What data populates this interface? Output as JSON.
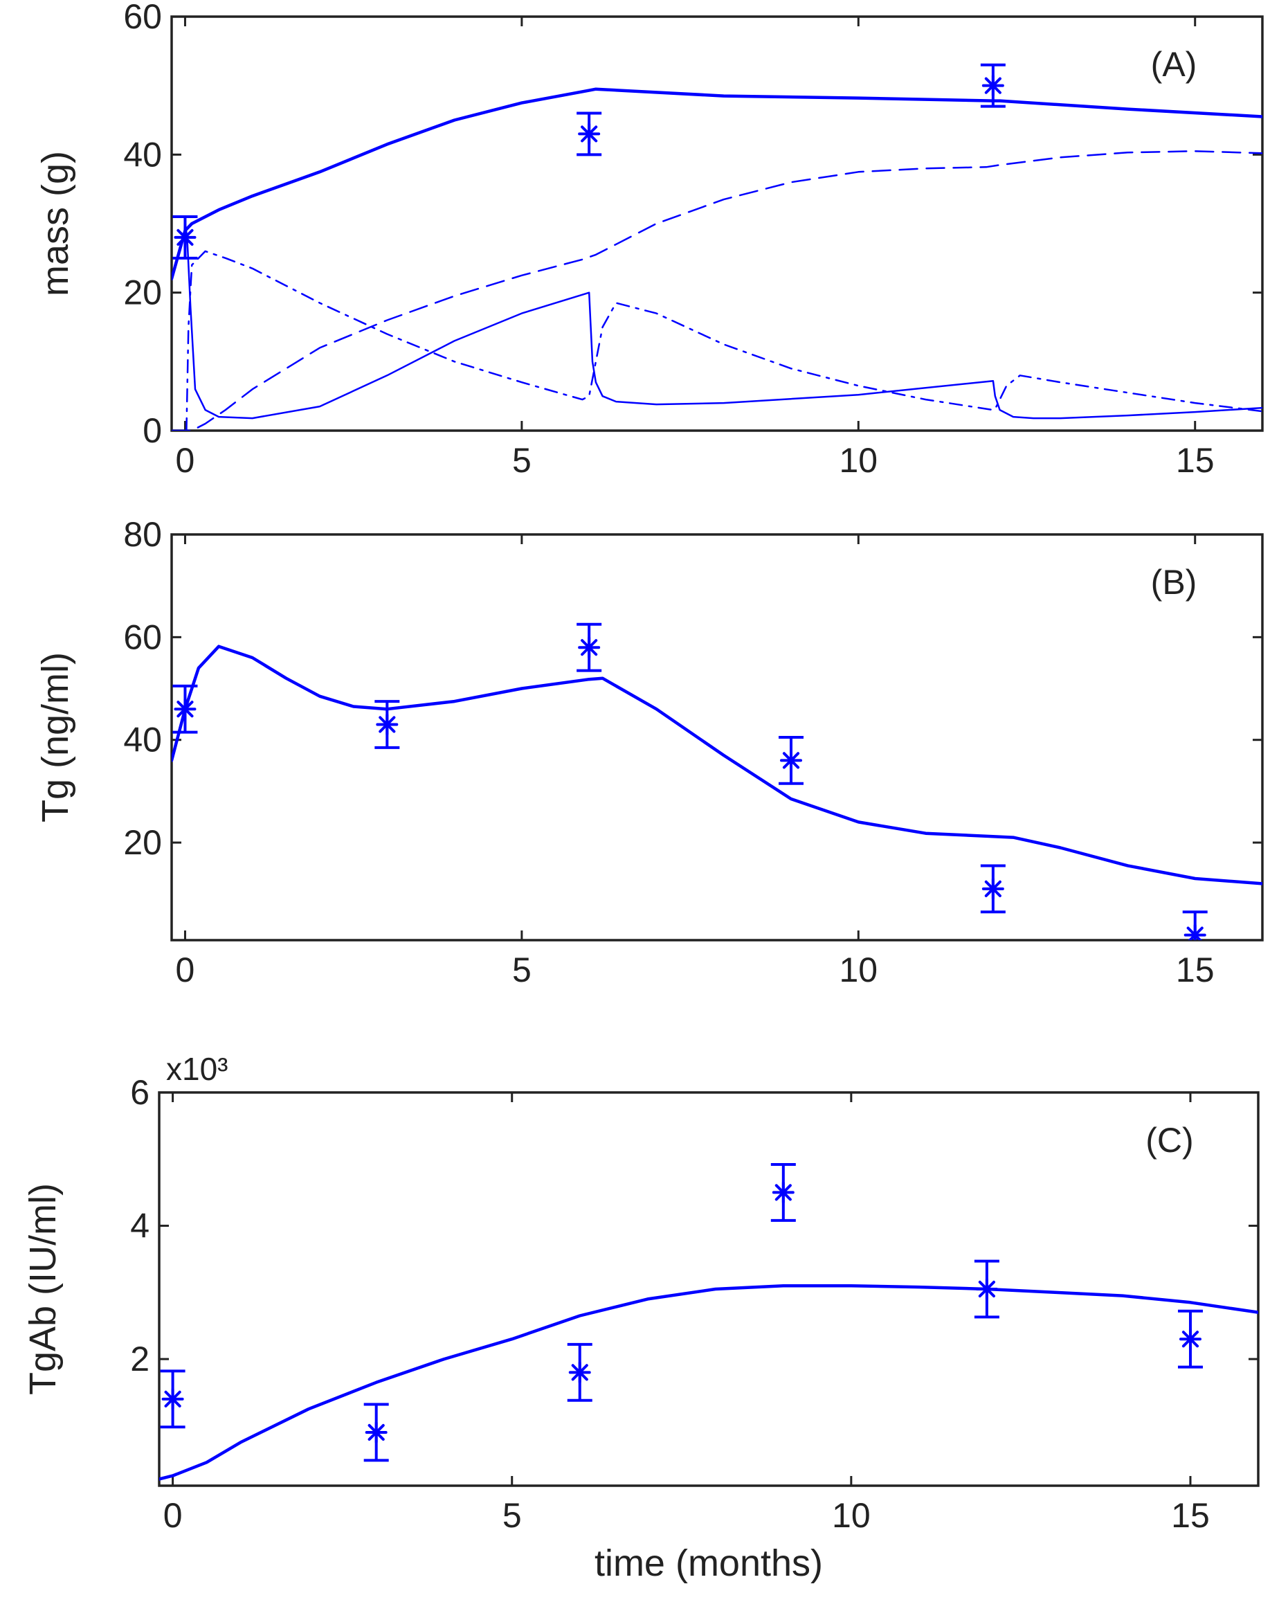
{
  "figure": {
    "line_color": "#0000ff",
    "axis_color": "#222222",
    "xlabel": "time (months)"
  },
  "chart_data": [
    {
      "type": "line",
      "panel_label": "(A)",
      "ylabel": "mass (g)",
      "xlabel": "",
      "xlim": [
        -0.2,
        16
      ],
      "ylim": [
        0,
        60
      ],
      "xticks": [
        0,
        5,
        10,
        15
      ],
      "yticks": [
        0,
        20,
        40,
        60
      ],
      "grid": false,
      "series": [
        {
          "style": "solid-thick",
          "x": [
            -0.2,
            0,
            0.1,
            0.5,
            1,
            2,
            3,
            4,
            5,
            6,
            6.1,
            8,
            10,
            12,
            12.1,
            14,
            16
          ],
          "y": [
            22,
            29,
            30,
            32,
            34,
            37.5,
            41.5,
            45,
            47.5,
            49.3,
            49.5,
            48.5,
            48.2,
            47.8,
            47.8,
            46.6,
            45.5
          ]
        },
        {
          "style": "dashed",
          "x": [
            -0.2,
            0,
            0.1,
            0.3,
            0.6,
            1,
            2,
            3,
            4,
            5,
            5.9,
            6.1,
            7,
            8,
            9,
            10,
            11,
            11.9,
            12.1,
            13,
            14,
            15,
            16
          ],
          "y": [
            0,
            0,
            0,
            1,
            3,
            6,
            12,
            16,
            19.5,
            22.5,
            24.8,
            25.5,
            30,
            33.5,
            36,
            37.5,
            38,
            38.2,
            38.5,
            39.6,
            40.3,
            40.5,
            40.2
          ]
        },
        {
          "style": "dashdot",
          "x": [
            0.02,
            0.05,
            0.1,
            0.3,
            0.6,
            1,
            2,
            3,
            4,
            5,
            5.9,
            6.0,
            6.2,
            6.4,
            7,
            8,
            9,
            10,
            11,
            12,
            12.05,
            12.2,
            12.4,
            13,
            14,
            15,
            16
          ],
          "y": [
            0,
            15,
            24,
            26,
            25,
            23.5,
            18.5,
            14,
            10,
            7,
            4.5,
            5,
            15,
            18.5,
            17,
            12.5,
            9,
            6.5,
            4.5,
            3,
            3.5,
            6.5,
            8,
            7,
            5.5,
            4,
            2.8
          ]
        },
        {
          "style": "solid-thin",
          "x": [
            0,
            0.03,
            0.08,
            0.15,
            0.3,
            0.5,
            1,
            2,
            3,
            4,
            5,
            6,
            6.02,
            6.05,
            6.1,
            6.2,
            6.4,
            6.7,
            7,
            8,
            10,
            12,
            12.03,
            12.1,
            12.3,
            12.6,
            13,
            14,
            15,
            16
          ],
          "y": [
            30,
            28,
            18,
            6,
            3,
            2,
            1.8,
            3.5,
            8,
            13,
            17,
            20,
            16,
            10,
            7,
            5,
            4.2,
            4,
            3.8,
            4,
            5.2,
            7.2,
            5,
            3,
            2,
            1.8,
            1.8,
            2.2,
            2.7,
            3.3
          ]
        }
      ],
      "markers": {
        "x": [
          0,
          6,
          12
        ],
        "y": [
          28,
          43,
          50
        ],
        "err": [
          3,
          3,
          3
        ]
      }
    },
    {
      "type": "line",
      "panel_label": "(B)",
      "ylabel": "Tg (ng/ml)",
      "xlabel": "",
      "xlim": [
        -0.2,
        16
      ],
      "ylim": [
        1,
        80
      ],
      "xticks": [
        0,
        5,
        10,
        15
      ],
      "yticks": [
        20,
        40,
        60,
        80
      ],
      "grid": false,
      "series": [
        {
          "style": "solid-thick",
          "x": [
            -0.2,
            0,
            0.2,
            0.5,
            1,
            1.5,
            2,
            2.5,
            3,
            4,
            5,
            6,
            6.2,
            7,
            8,
            9,
            10,
            11,
            12,
            12.3,
            13,
            14,
            15,
            16
          ],
          "y": [
            36,
            46,
            54,
            58.2,
            56,
            52,
            48.5,
            46.5,
            46,
            47.5,
            50,
            51.8,
            52,
            46,
            37,
            28.5,
            24,
            21.8,
            21.2,
            21,
            19,
            15.5,
            13,
            12
          ]
        }
      ],
      "markers": {
        "x": [
          0,
          3,
          6,
          9,
          12,
          15
        ],
        "y": [
          46,
          43,
          58,
          36,
          11,
          2
        ],
        "err": [
          4.5,
          4.5,
          4.5,
          4.5,
          4.5,
          4.5
        ]
      }
    },
    {
      "type": "line",
      "panel_label": "(C)",
      "ylabel": "TgAb (IU/ml)",
      "xlabel": "time (months)",
      "y_multiplier": "x10³",
      "xlim": [
        -0.2,
        16
      ],
      "ylim": [
        0.1,
        6
      ],
      "xticks": [
        0,
        5,
        10,
        15
      ],
      "yticks": [
        2,
        4,
        6
      ],
      "grid": false,
      "series": [
        {
          "style": "solid-thick",
          "x": [
            -0.2,
            0,
            0.5,
            1,
            2,
            3,
            4,
            5,
            6,
            7,
            8,
            9,
            10,
            11,
            12,
            13,
            14,
            15,
            16
          ],
          "y": [
            0.2,
            0.25,
            0.45,
            0.75,
            1.25,
            1.65,
            2.0,
            2.3,
            2.65,
            2.9,
            3.05,
            3.1,
            3.1,
            3.08,
            3.05,
            3.0,
            2.95,
            2.85,
            2.7
          ]
        }
      ],
      "markers": {
        "x": [
          0,
          3,
          6,
          9,
          12,
          15
        ],
        "y": [
          1.4,
          0.9,
          1.8,
          4.5,
          3.05,
          2.3
        ],
        "err": [
          0.42,
          0.42,
          0.42,
          0.42,
          0.42,
          0.42
        ]
      }
    }
  ]
}
